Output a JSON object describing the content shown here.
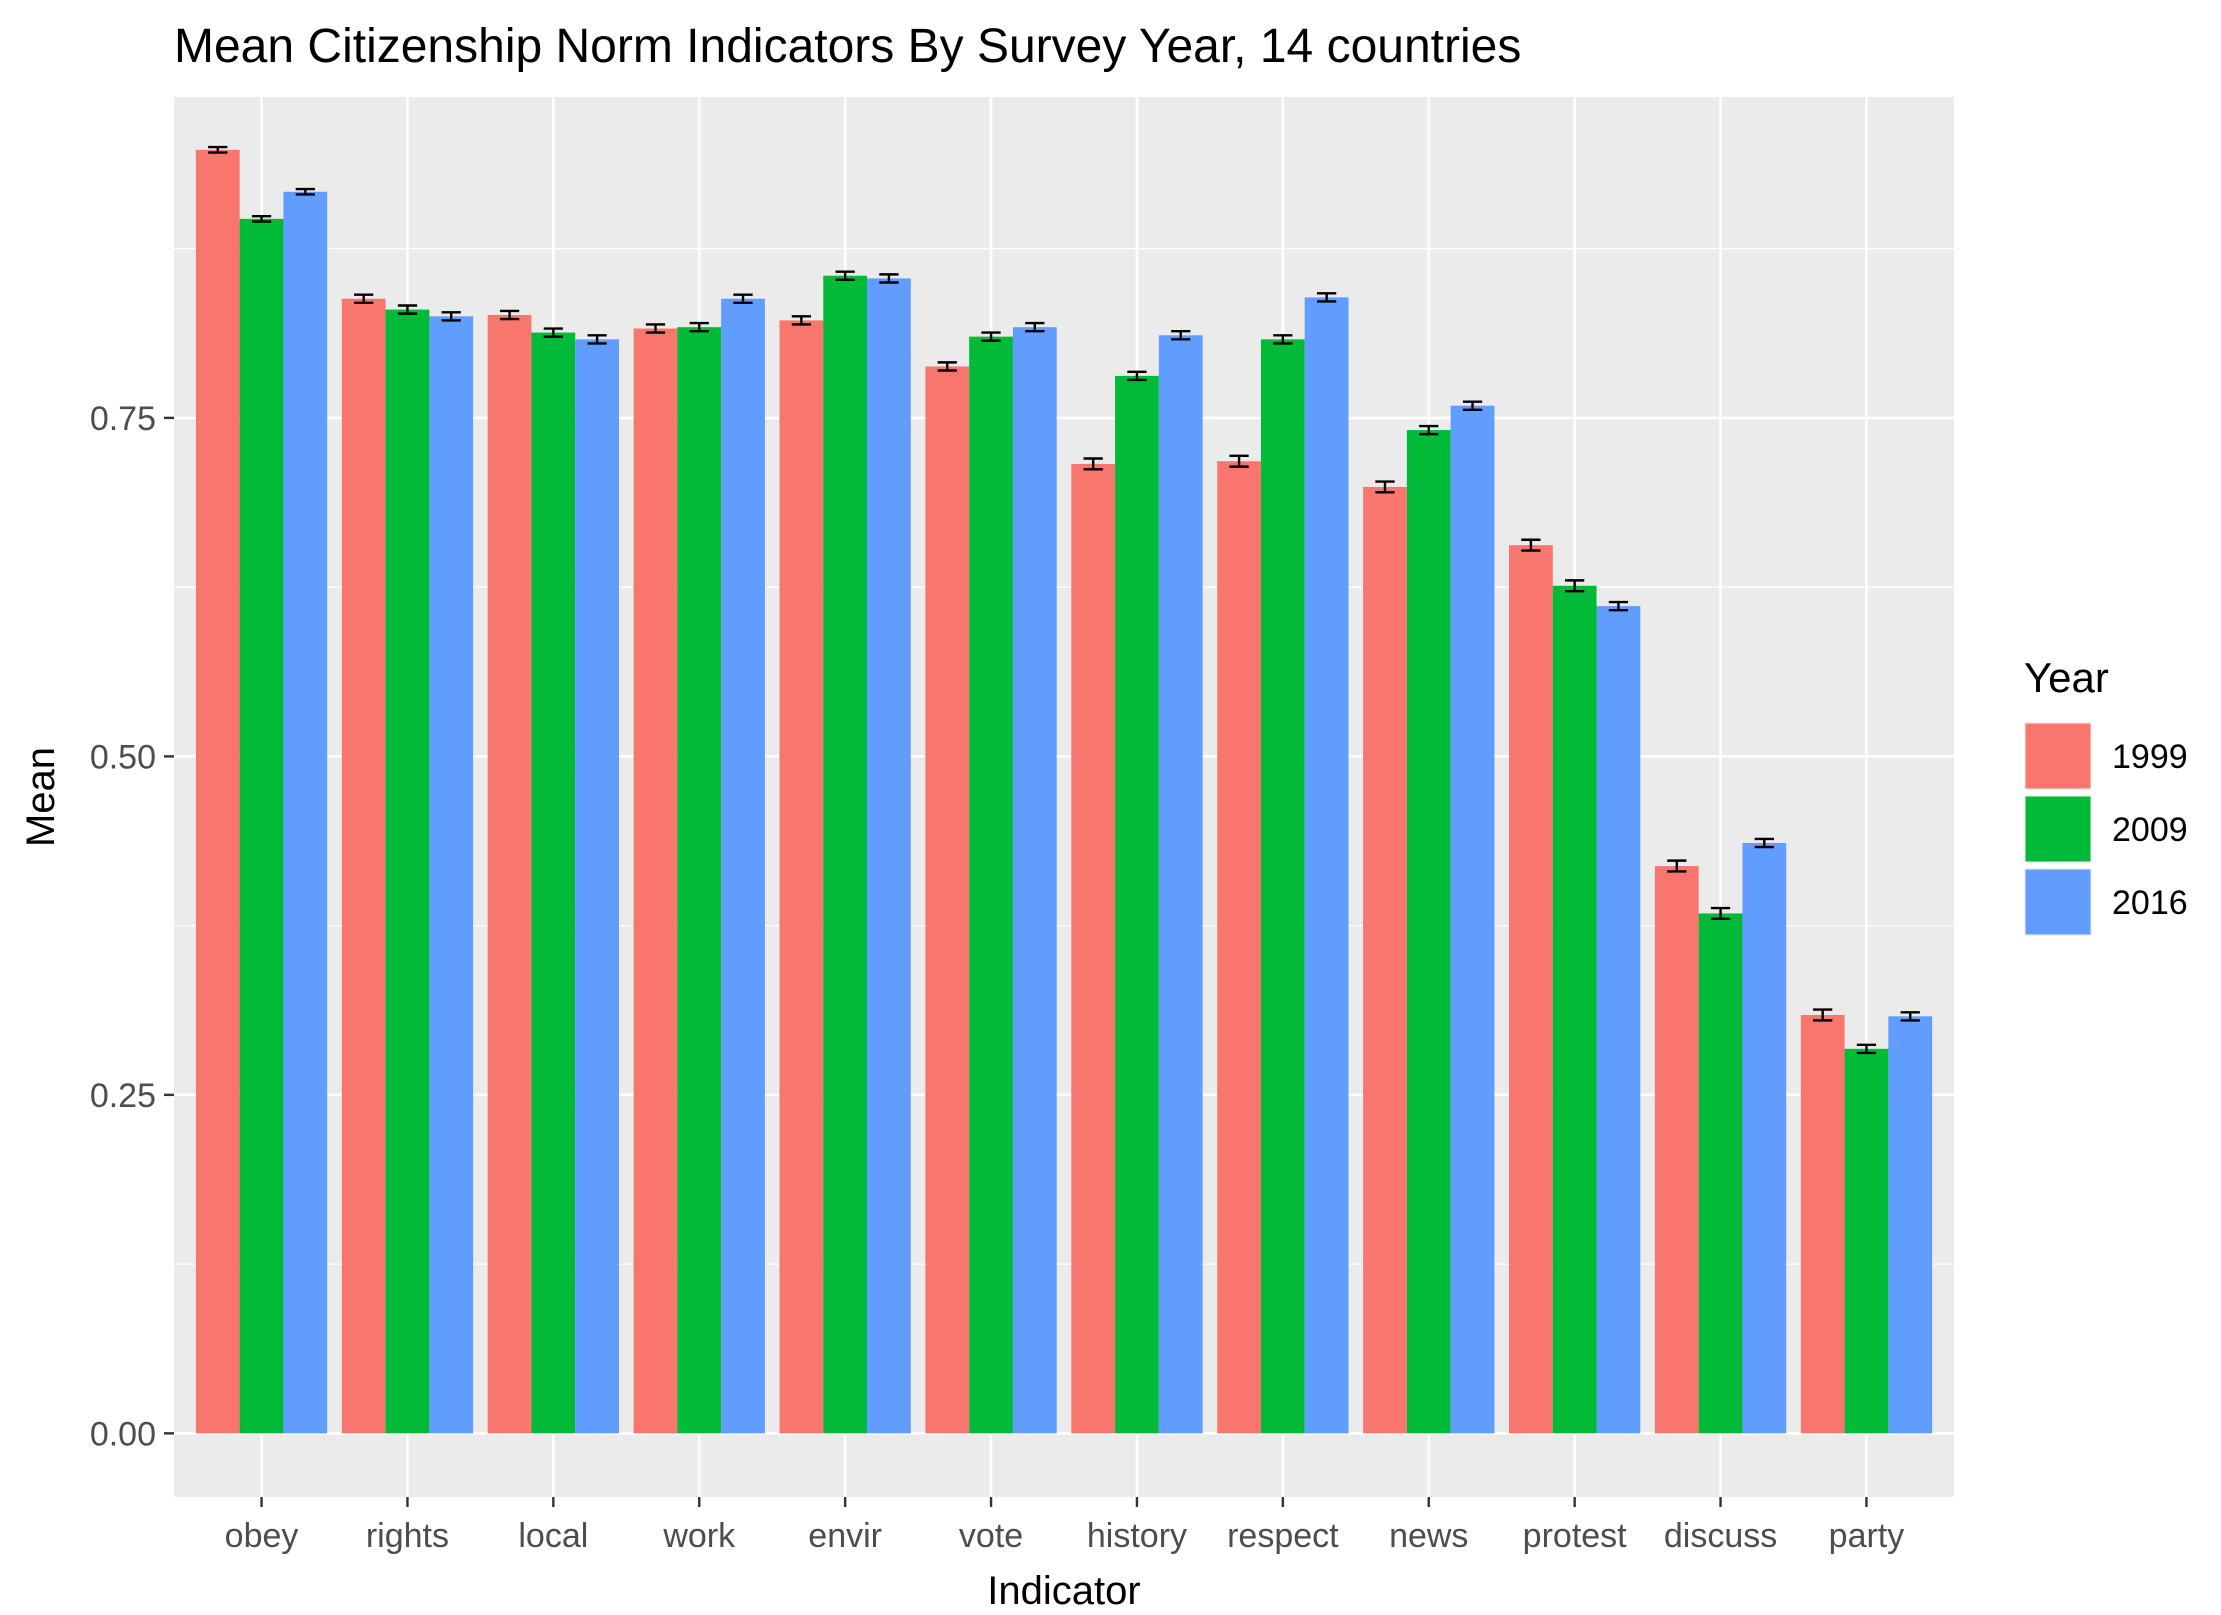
{
  "chart_data": {
    "type": "bar",
    "title": "Mean Citizenship Norm Indicators By Survey Year, 14 countries",
    "xlabel": "Indicator",
    "ylabel": "Mean",
    "ylim": [
      -0.047,
      0.987
    ],
    "yticks": [
      0.0,
      0.25,
      0.5,
      0.75
    ],
    "ytick_labels": [
      "0.00",
      "0.25",
      "0.50",
      "0.75"
    ],
    "categories": [
      "obey",
      "rights",
      "local",
      "work",
      "envir",
      "vote",
      "history",
      "respect",
      "news",
      "protest",
      "discuss",
      "party"
    ],
    "legend": {
      "title": "Year",
      "position": "right"
    },
    "grid": true,
    "series": [
      {
        "name": "1999",
        "color": "#F8766D",
        "values": [
          0.948,
          0.838,
          0.826,
          0.816,
          0.822,
          0.788,
          0.716,
          0.718,
          0.699,
          0.656,
          0.419,
          0.309
        ],
        "errors": [
          0.002,
          0.003,
          0.003,
          0.003,
          0.003,
          0.003,
          0.004,
          0.004,
          0.004,
          0.004,
          0.004,
          0.004
        ]
      },
      {
        "name": "2009",
        "color": "#00BA38",
        "values": [
          0.897,
          0.83,
          0.813,
          0.817,
          0.855,
          0.81,
          0.781,
          0.808,
          0.741,
          0.626,
          0.384,
          0.284
        ],
        "errors": [
          0.002,
          0.003,
          0.003,
          0.003,
          0.003,
          0.003,
          0.003,
          0.003,
          0.003,
          0.004,
          0.004,
          0.003
        ]
      },
      {
        "name": "2016",
        "color": "#619CFF",
        "values": [
          0.917,
          0.825,
          0.808,
          0.838,
          0.853,
          0.817,
          0.811,
          0.839,
          0.759,
          0.611,
          0.436,
          0.308
        ],
        "errors": [
          0.002,
          0.003,
          0.003,
          0.003,
          0.003,
          0.003,
          0.003,
          0.003,
          0.003,
          0.003,
          0.003,
          0.003
        ]
      }
    ]
  }
}
